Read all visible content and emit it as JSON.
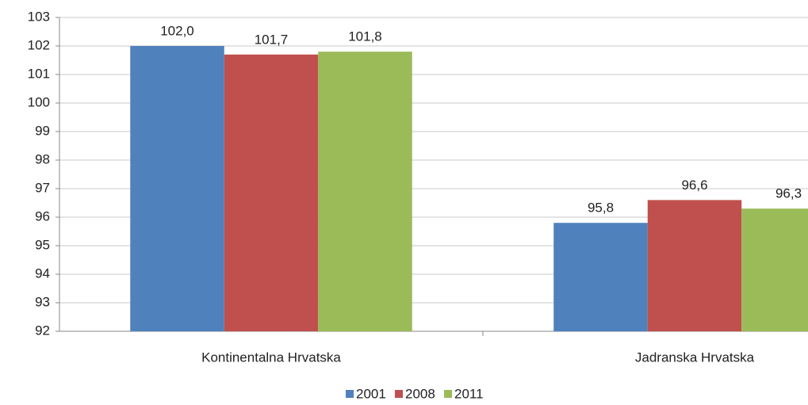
{
  "chart_data": {
    "type": "bar",
    "categories": [
      "Kontinentalna Hrvatska",
      "Jadranska Hrvatska"
    ],
    "series": [
      {
        "name": "2001",
        "color": "#4f81bd",
        "values": [
          102.0,
          95.8
        ],
        "value_labels": [
          "102,0",
          "95,8"
        ]
      },
      {
        "name": "2008",
        "color": "#c0504d",
        "values": [
          101.7,
          96.6
        ],
        "value_labels": [
          "101,7",
          "96,6"
        ]
      },
      {
        "name": "2011",
        "color": "#9bbb59",
        "values": [
          101.8,
          96.3
        ],
        "value_labels": [
          "101,8",
          "96,3"
        ]
      }
    ],
    "ylim": [
      92,
      103
    ],
    "yticks": [
      92,
      93,
      94,
      95,
      96,
      97,
      98,
      99,
      100,
      101,
      102,
      103
    ],
    "grid": true,
    "legend": "bottom"
  }
}
